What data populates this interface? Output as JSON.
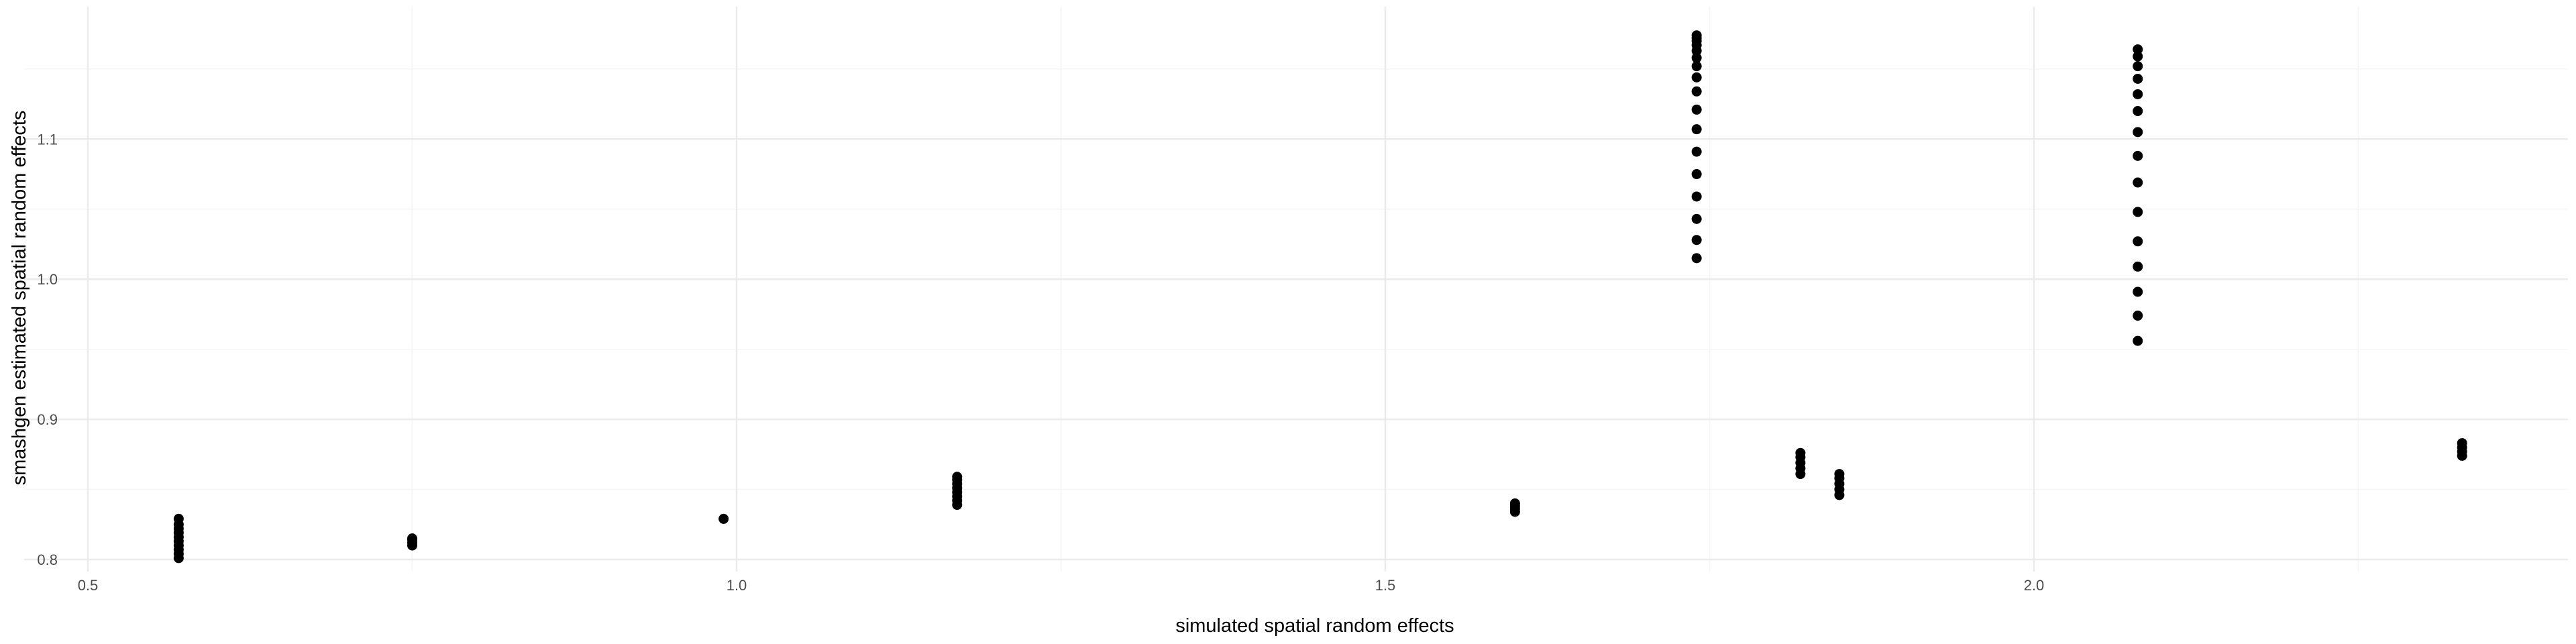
{
  "colors": {
    "background": "#ffffff",
    "grid_major": "#ebebeb",
    "grid_minor": "#f5f5f5",
    "point": "#000000",
    "tick_text": "#4d4d4d"
  },
  "chart_data": {
    "type": "scatter",
    "title": "",
    "xlabel": "simulated spatial random effects",
    "ylabel": "smashgen estimated spatial random effects",
    "xlim": [
      0.5,
      2.37
    ],
    "ylim": [
      0.797,
      1.18
    ],
    "grid": true,
    "x_ticks": [
      0.5,
      1.0,
      1.5,
      2.0
    ],
    "x_tick_labels": [
      "0.5",
      "1.0",
      "1.5",
      "2.0"
    ],
    "y_ticks": [
      0.8,
      0.9,
      1.0,
      1.1
    ],
    "y_tick_labels": [
      "0.8",
      "0.9",
      "1.0",
      "1.1"
    ],
    "points": [
      {
        "x": 0.57,
        "y": 0.801
      },
      {
        "x": 0.57,
        "y": 0.804
      },
      {
        "x": 0.57,
        "y": 0.807
      },
      {
        "x": 0.57,
        "y": 0.81
      },
      {
        "x": 0.57,
        "y": 0.813
      },
      {
        "x": 0.57,
        "y": 0.816
      },
      {
        "x": 0.57,
        "y": 0.819
      },
      {
        "x": 0.57,
        "y": 0.822
      },
      {
        "x": 0.57,
        "y": 0.825
      },
      {
        "x": 0.57,
        "y": 0.829
      },
      {
        "x": 0.75,
        "y": 0.81
      },
      {
        "x": 0.75,
        "y": 0.812
      },
      {
        "x": 0.75,
        "y": 0.814
      },
      {
        "x": 0.75,
        "y": 0.815
      },
      {
        "x": 0.99,
        "y": 0.829
      },
      {
        "x": 1.17,
        "y": 0.839
      },
      {
        "x": 1.17,
        "y": 0.842
      },
      {
        "x": 1.17,
        "y": 0.845
      },
      {
        "x": 1.17,
        "y": 0.848
      },
      {
        "x": 1.17,
        "y": 0.851
      },
      {
        "x": 1.17,
        "y": 0.854
      },
      {
        "x": 1.17,
        "y": 0.857
      },
      {
        "x": 1.17,
        "y": 0.859
      },
      {
        "x": 1.6,
        "y": 0.834
      },
      {
        "x": 1.6,
        "y": 0.836
      },
      {
        "x": 1.6,
        "y": 0.838
      },
      {
        "x": 1.6,
        "y": 0.84
      },
      {
        "x": 1.74,
        "y": 1.015
      },
      {
        "x": 1.74,
        "y": 1.028
      },
      {
        "x": 1.74,
        "y": 1.043
      },
      {
        "x": 1.74,
        "y": 1.059
      },
      {
        "x": 1.74,
        "y": 1.075
      },
      {
        "x": 1.74,
        "y": 1.091
      },
      {
        "x": 1.74,
        "y": 1.107
      },
      {
        "x": 1.74,
        "y": 1.121
      },
      {
        "x": 1.74,
        "y": 1.134
      },
      {
        "x": 1.74,
        "y": 1.144
      },
      {
        "x": 1.74,
        "y": 1.152
      },
      {
        "x": 1.74,
        "y": 1.158
      },
      {
        "x": 1.74,
        "y": 1.163
      },
      {
        "x": 1.74,
        "y": 1.167
      },
      {
        "x": 1.74,
        "y": 1.17
      },
      {
        "x": 1.74,
        "y": 1.172
      },
      {
        "x": 1.74,
        "y": 1.174
      },
      {
        "x": 1.82,
        "y": 0.861
      },
      {
        "x": 1.82,
        "y": 0.865
      },
      {
        "x": 1.82,
        "y": 0.869
      },
      {
        "x": 1.82,
        "y": 0.873
      },
      {
        "x": 1.82,
        "y": 0.876
      },
      {
        "x": 1.85,
        "y": 0.846
      },
      {
        "x": 1.85,
        "y": 0.85
      },
      {
        "x": 1.85,
        "y": 0.854
      },
      {
        "x": 1.85,
        "y": 0.858
      },
      {
        "x": 1.85,
        "y": 0.861
      },
      {
        "x": 2.08,
        "y": 0.956
      },
      {
        "x": 2.08,
        "y": 0.974
      },
      {
        "x": 2.08,
        "y": 0.991
      },
      {
        "x": 2.08,
        "y": 1.009
      },
      {
        "x": 2.08,
        "y": 1.027
      },
      {
        "x": 2.08,
        "y": 1.048
      },
      {
        "x": 2.08,
        "y": 1.069
      },
      {
        "x": 2.08,
        "y": 1.088
      },
      {
        "x": 2.08,
        "y": 1.105
      },
      {
        "x": 2.08,
        "y": 1.12
      },
      {
        "x": 2.08,
        "y": 1.132
      },
      {
        "x": 2.08,
        "y": 1.143
      },
      {
        "x": 2.08,
        "y": 1.152
      },
      {
        "x": 2.08,
        "y": 1.159
      },
      {
        "x": 2.08,
        "y": 1.164
      },
      {
        "x": 2.33,
        "y": 0.874
      },
      {
        "x": 2.33,
        "y": 0.877
      },
      {
        "x": 2.33,
        "y": 0.88
      },
      {
        "x": 2.33,
        "y": 0.883
      }
    ]
  }
}
